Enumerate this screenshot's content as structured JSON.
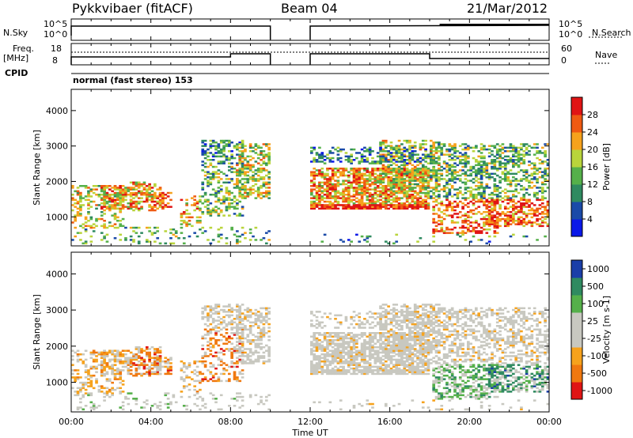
{
  "header": {
    "radar_title": "Pykkvibaer (fitACF)",
    "beam": "Beam 04",
    "date": "21/Mar/2012",
    "cpid_label": "CPID",
    "cpid_value": "normal (fast stereo) 153"
  },
  "top_panels": {
    "nsky_label": "N.Sky",
    "nsearch_label": "N.Search",
    "noise_ticks": [
      "10^5",
      "10^0"
    ],
    "freq_label_1": "Freq.",
    "freq_label_2": "[MHz]",
    "freq_ticks": [
      "18",
      "8"
    ],
    "nave_label": "Nave",
    "nave_ticks": [
      "60",
      "0"
    ]
  },
  "colors": {
    "power": [
      "#0a18e8",
      "#1a4aa8",
      "#2f8a60",
      "#55b04a",
      "#b9d43b",
      "#f6a21c",
      "#ef5a12",
      "#e01414"
    ],
    "velocity": [
      "#e01414",
      "#f0780f",
      "#f6a21c",
      "#c8c8c0",
      "#c8c8c0",
      "#55b04a",
      "#2f8a60",
      "#1a3ea8"
    ]
  },
  "chart_data": [
    {
      "type": "heatmap",
      "quantity": "Power",
      "ylabel": "Slant Range [km]",
      "yticks": [
        1000,
        2000,
        3000,
        4000
      ],
      "ylim": [
        180,
        4600
      ],
      "xlim": [
        "00:00",
        "24:00"
      ],
      "colorbar_label": "Power [dB]",
      "colorbar_ticks": [
        4,
        8,
        12,
        16,
        20,
        24,
        28
      ],
      "data_gaps": [
        [
          "10:00",
          "12:00"
        ]
      ]
    },
    {
      "type": "heatmap",
      "quantity": "Velocity",
      "ylabel": "Slant Range [km]",
      "yticks": [
        1000,
        2000,
        3000,
        4000
      ],
      "ylim": [
        180,
        4600
      ],
      "xlim": [
        "00:00",
        "24:00"
      ],
      "xlabel": "Time UT",
      "xticks": [
        "00:00",
        "04:00",
        "08:00",
        "12:00",
        "16:00",
        "20:00",
        "00:00"
      ],
      "colorbar_label": "Velocity [m s-1]",
      "colorbar_ticks": [
        -1000,
        -500,
        -100,
        -25,
        25,
        100,
        500,
        1000
      ],
      "data_gaps": [
        [
          "10:00",
          "12:00"
        ]
      ]
    }
  ]
}
